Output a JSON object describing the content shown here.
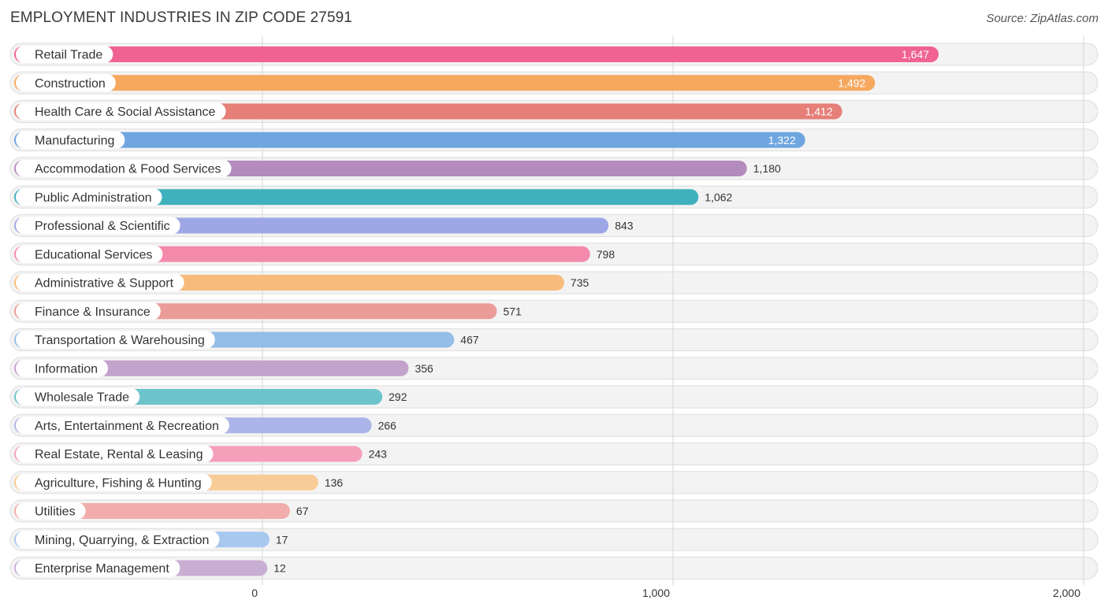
{
  "chart_data": {
    "type": "bar",
    "orientation": "horizontal",
    "title": "EMPLOYMENT INDUSTRIES IN ZIP CODE 27591",
    "source": "Source: ZipAtlas.com",
    "xlim": [
      0,
      2000
    ],
    "ticks": [
      0,
      1000,
      2000
    ],
    "tick_labels": [
      "0",
      "1,000",
      "2,000"
    ],
    "grid": true,
    "categories": [
      "Retail Trade",
      "Construction",
      "Health Care & Social Assistance",
      "Manufacturing",
      "Accommodation & Food Services",
      "Public Administration",
      "Professional & Scientific",
      "Educational Services",
      "Administrative & Support",
      "Finance & Insurance",
      "Transportation & Warehousing",
      "Information",
      "Wholesale Trade",
      "Arts, Entertainment & Recreation",
      "Real Estate, Rental & Leasing",
      "Agriculture, Fishing & Hunting",
      "Utilities",
      "Mining, Quarrying, & Extraction",
      "Enterprise Management"
    ],
    "values": [
      1647,
      1492,
      1412,
      1322,
      1180,
      1062,
      843,
      798,
      735,
      571,
      467,
      356,
      292,
      266,
      243,
      136,
      67,
      17,
      12
    ],
    "value_labels": [
      "1,647",
      "1,492",
      "1,412",
      "1,322",
      "1,180",
      "1,062",
      "843",
      "798",
      "735",
      "571",
      "467",
      "356",
      "292",
      "266",
      "243",
      "136",
      "67",
      "17",
      "12"
    ],
    "colors": [
      "#f06292",
      "#f6a85f",
      "#e57f78",
      "#6fa6e0",
      "#b48bbd",
      "#3fb1bc",
      "#9ea7e6",
      "#f48aab",
      "#f7bb7c",
      "#eb9b98",
      "#94bde8",
      "#c3a2cb",
      "#6ec4cc",
      "#adb4ea",
      "#f59fba",
      "#f9cb96",
      "#f1adab",
      "#a8c8ee",
      "#c8aed2"
    ]
  }
}
